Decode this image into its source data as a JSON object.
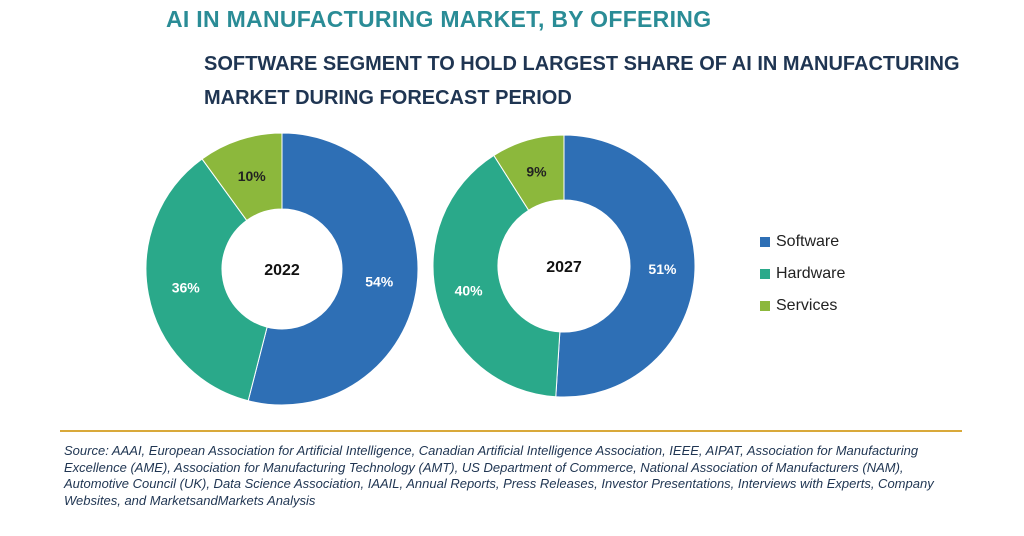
{
  "title": "AI IN MANUFACTURING MARKET, BY OFFERING",
  "subtitle": "SOFTWARE SEGMENT TO HOLD LARGEST SHARE OF AI IN MANUFACTURING MARKET DURING FORECAST PERIOD",
  "source": "Source: AAAI, European Association for Artificial Intelligence, Canadian Artificial Intelligence Association, IEEE, AIPAT, Association for Manufacturing Excellence (AME), Association for Manufacturing Technology (AMT), US Department of Commerce, National Association of Manufacturers (NAM), Automotive Council (UK), Data Science Association, IAAIL, Annual Reports, Press Releases, Investor Presentations, Interviews with Experts, Company Websites, and MarketsandMarkets Analysis",
  "colors": {
    "software": "#2e6fb5",
    "hardware": "#2aa98a",
    "services": "#8cb83c",
    "title": "#2a8c96",
    "subtitle": "#1f3552",
    "divider": "#d9a93a"
  },
  "chart_data": [
    {
      "type": "pie",
      "variant": "donut",
      "center_label": "2022",
      "categories": [
        "Software",
        "Hardware",
        "Services"
      ],
      "values": [
        54,
        36,
        10
      ],
      "value_labels": [
        "54%",
        "36%",
        "10%"
      ],
      "legend_placement": "right"
    },
    {
      "type": "pie",
      "variant": "donut",
      "center_label": "2027",
      "categories": [
        "Software",
        "Hardware",
        "Services"
      ],
      "values": [
        51,
        40,
        9
      ],
      "value_labels": [
        "51%",
        "40%",
        "9%"
      ],
      "legend_placement": "right"
    }
  ],
  "legend": [
    {
      "label": "Software",
      "color": "#2e6fb5"
    },
    {
      "label": "Hardware",
      "color": "#2aa98a"
    },
    {
      "label": "Services",
      "color": "#8cb83c"
    }
  ]
}
